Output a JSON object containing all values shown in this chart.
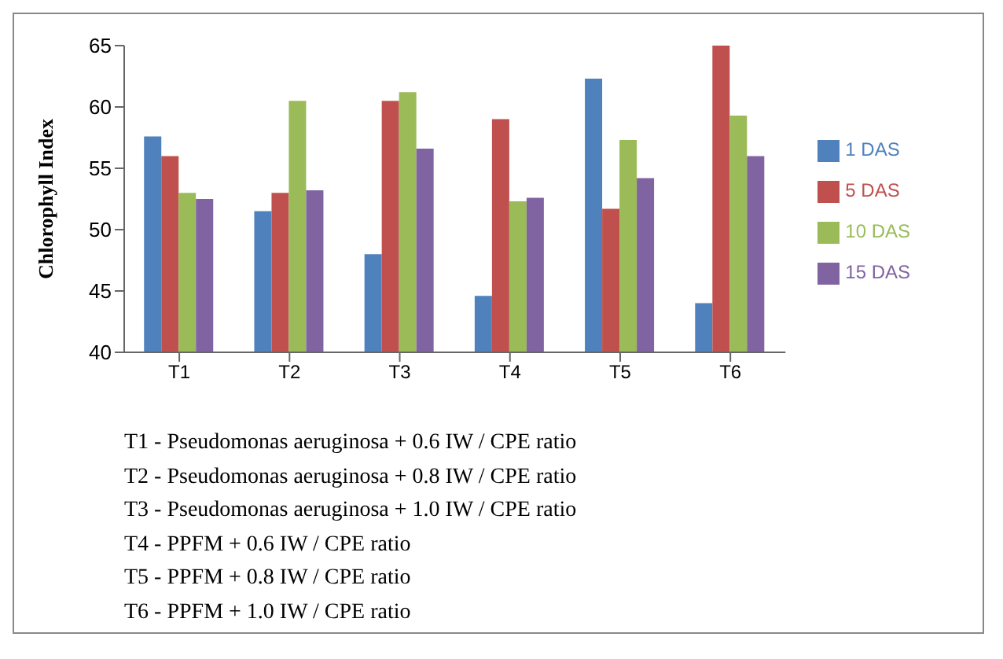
{
  "chart_data": {
    "type": "bar",
    "ylabel": "Chlorophyll  Index",
    "categories": [
      "T1",
      "T2",
      "T3",
      "T4",
      "T5",
      "T6"
    ],
    "series": [
      {
        "name": "1 DAS",
        "color": "#4f81bd",
        "values": [
          57.6,
          51.5,
          48.0,
          44.6,
          62.3,
          44.0
        ]
      },
      {
        "name": "5 DAS",
        "color": "#c0504d",
        "values": [
          56.0,
          53.0,
          60.5,
          59.0,
          51.7,
          65.0
        ]
      },
      {
        "name": "10 DAS",
        "color": "#9bbb59",
        "values": [
          53.0,
          60.5,
          61.2,
          52.3,
          57.3,
          59.3
        ]
      },
      {
        "name": "15 DAS",
        "color": "#8064a2",
        "values": [
          52.5,
          53.2,
          56.6,
          52.6,
          54.2,
          56.0
        ]
      }
    ],
    "ylim": [
      40,
      65
    ],
    "yticks": [
      40,
      45,
      50,
      55,
      60,
      65
    ],
    "grid": false,
    "legend": "right",
    "annotations": [
      "T1 - Pseudomonas aeruginosa + 0.6  IW / CPE ratio",
      "T2 - Pseudomonas aeruginosa + 0.8  IW / CPE ratio",
      "T3 - Pseudomonas aeruginosa + 1.0 IW / CPE ratio",
      "T4 - PPFM + 0.6  IW / CPE ratio",
      "T5 - PPFM + 0.8  IW / CPE ratio",
      "T6 - PPFM + 1.0  IW / CPE ratio"
    ]
  }
}
